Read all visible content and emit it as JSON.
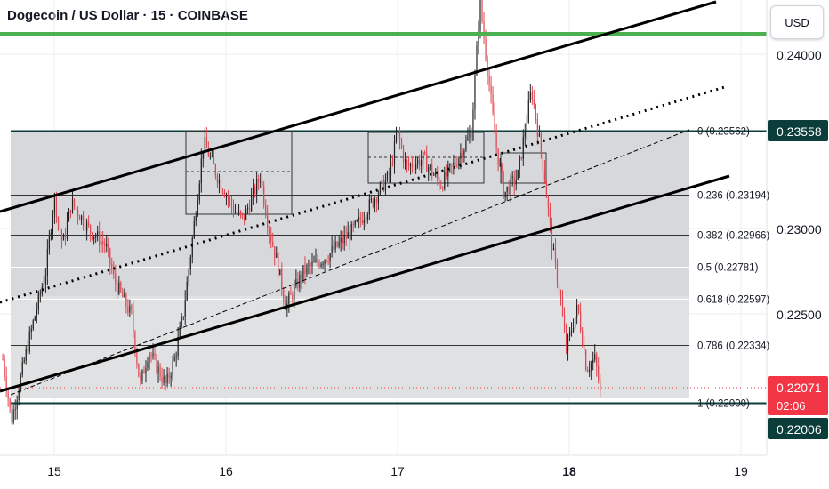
{
  "header": {
    "title": "Dogecoin / US Dollar · 15 · COINBASE",
    "currency_button": "USD"
  },
  "colors": {
    "up": "#222222",
    "down": "#e04550",
    "channel": "#000000",
    "resistance": "#4caf50",
    "current_price": "#f23645",
    "fib_tag": "#0b3d3a"
  },
  "price_axis": {
    "ticks": [
      "0.24000",
      "0.23000",
      "0.22500"
    ]
  },
  "time_axis": {
    "ticks": [
      "15",
      "16",
      "17",
      "18",
      "19"
    ],
    "bold_tick": "18"
  },
  "fib_levels": [
    {
      "ratio": 0,
      "price": 0.23562,
      "label": "0 (0.23562)"
    },
    {
      "ratio": 0.236,
      "price": 0.23194,
      "label": "0.236 (0.23194)"
    },
    {
      "ratio": 0.382,
      "price": 0.22966,
      "label": "0.382 (0.22966)"
    },
    {
      "ratio": 0.5,
      "price": 0.22781,
      "label": "0.5 (0.22781)"
    },
    {
      "ratio": 0.618,
      "price": 0.22597,
      "label": "0.618 (0.22597)"
    },
    {
      "ratio": 0.786,
      "price": 0.22334,
      "label": "0.786 (0.22334)"
    },
    {
      "ratio": 1,
      "price": 0.22,
      "label": "1 (0.22000)"
    }
  ],
  "price_tags": {
    "fib_top": "0.23558",
    "current_price": "0.22071",
    "countdown": "02:06",
    "fib_bottom": "0.22006"
  },
  "chart_data": {
    "type": "candlestick",
    "title": "Dogecoin / US Dollar · 15 · COINBASE",
    "x_ticks": [
      "15",
      "16",
      "17",
      "18",
      "19"
    ],
    "y_ticks": [
      0.24,
      0.23,
      0.225
    ],
    "current_price": 0.22071,
    "resistance_level": 0.2413,
    "approximate_path": [
      [
        14.7,
        0.2225
      ],
      [
        14.75,
        0.219
      ],
      [
        14.85,
        0.2235
      ],
      [
        14.95,
        0.2275
      ],
      [
        15.0,
        0.2318
      ],
      [
        15.05,
        0.229
      ],
      [
        15.1,
        0.2315
      ],
      [
        15.2,
        0.23
      ],
      [
        15.3,
        0.229
      ],
      [
        15.35,
        0.227
      ],
      [
        15.45,
        0.225
      ],
      [
        15.5,
        0.221
      ],
      [
        15.55,
        0.223
      ],
      [
        15.65,
        0.221
      ],
      [
        15.7,
        0.2225
      ],
      [
        15.75,
        0.225
      ],
      [
        15.8,
        0.229
      ],
      [
        15.87,
        0.235
      ],
      [
        15.95,
        0.233
      ],
      [
        16.05,
        0.231
      ],
      [
        16.1,
        0.2305
      ],
      [
        16.2,
        0.233
      ],
      [
        16.25,
        0.23
      ],
      [
        16.3,
        0.228
      ],
      [
        16.35,
        0.2255
      ],
      [
        16.45,
        0.2275
      ],
      [
        16.6,
        0.2285
      ],
      [
        16.75,
        0.23
      ],
      [
        16.85,
        0.2315
      ],
      [
        16.95,
        0.233
      ],
      [
        17.0,
        0.2355
      ],
      [
        17.05,
        0.2335
      ],
      [
        17.15,
        0.234
      ],
      [
        17.25,
        0.2325
      ],
      [
        17.35,
        0.234
      ],
      [
        17.43,
        0.2355
      ],
      [
        17.48,
        0.243
      ],
      [
        17.52,
        0.2395
      ],
      [
        17.57,
        0.235
      ],
      [
        17.62,
        0.232
      ],
      [
        17.7,
        0.233
      ],
      [
        17.78,
        0.238
      ],
      [
        17.85,
        0.2335
      ],
      [
        17.9,
        0.229
      ],
      [
        17.95,
        0.226
      ],
      [
        17.98,
        0.223
      ],
      [
        18.02,
        0.2245
      ],
      [
        18.05,
        0.2255
      ],
      [
        18.1,
        0.222
      ],
      [
        18.15,
        0.2225
      ],
      [
        18.18,
        0.2207
      ]
    ]
  }
}
